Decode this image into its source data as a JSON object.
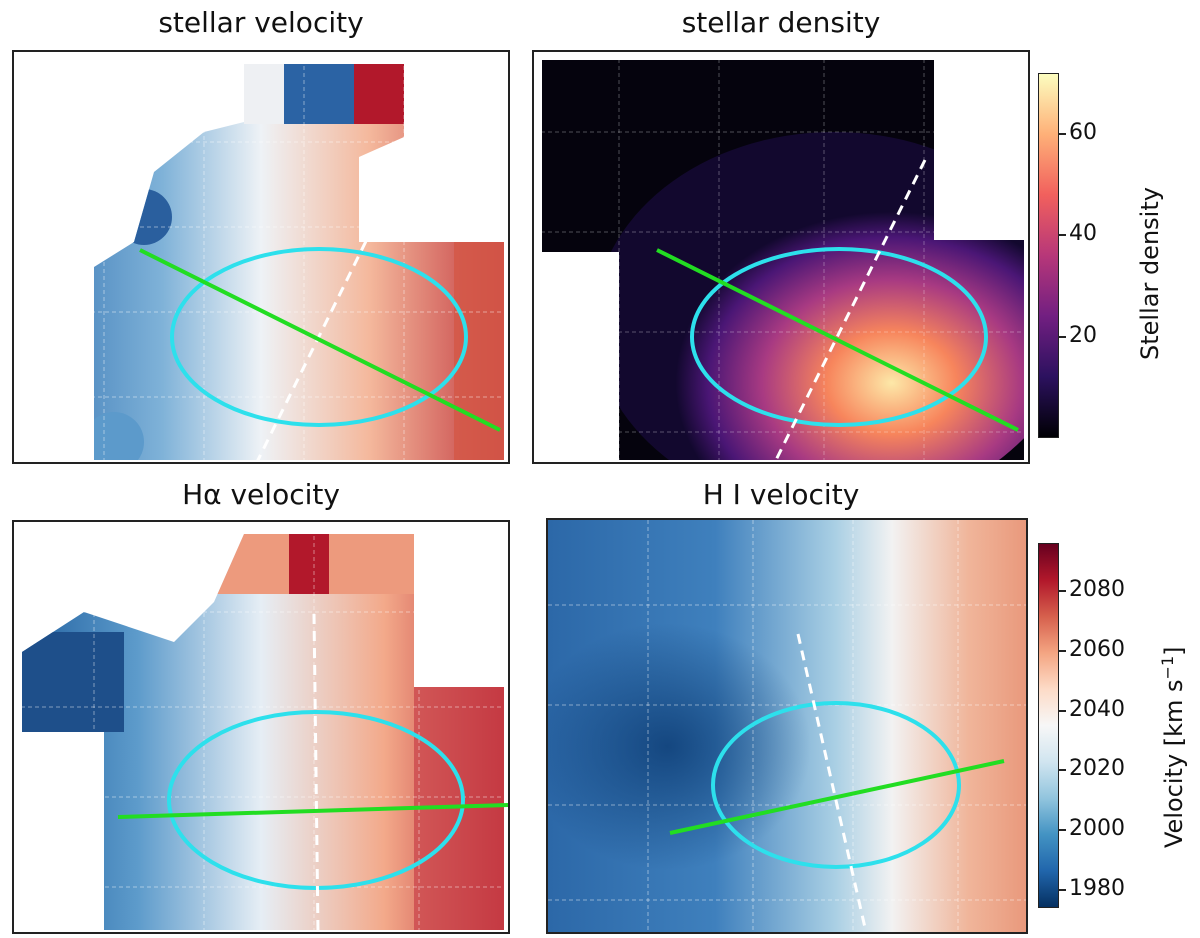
{
  "panels": [
    {
      "id": "stellar-velocity",
      "title": "stellar velocity",
      "colormap": "RdBu_r",
      "map_values": "stellar velocity field (diverging)"
    },
    {
      "id": "stellar-density",
      "title": "stellar density",
      "colormap": "magma",
      "map_values": "stellar density field"
    },
    {
      "id": "halpha-velocity",
      "title": "Hα velocity",
      "colormap": "RdBu_r",
      "map_values": "Hα velocity field (diverging)"
    },
    {
      "id": "hi-velocity",
      "title": "H I velocity",
      "colormap": "RdBu_r",
      "map_values": "H I velocity field (diverging)"
    }
  ],
  "overlays": {
    "ellipse_color": "#2de0ec",
    "kinematic_axis_color": "#22dd22",
    "photometric_axis_color": "#ffffff",
    "photometric_axis_style": "dashed"
  },
  "colorbars": {
    "density": {
      "label": "Stellar density",
      "ticks": [
        "20",
        "40",
        "60"
      ],
      "range": [
        0,
        72
      ],
      "colors": [
        "#000004",
        "#2c115f",
        "#721f81",
        "#b73779",
        "#f1605d",
        "#feb078",
        "#fcfdbf"
      ]
    },
    "velocity": {
      "label": "Velocity [km s",
      "label_sup": "−1",
      "label_end": "]",
      "ticks": [
        "1980",
        "2000",
        "2020",
        "2040",
        "2060",
        "2080"
      ],
      "range": [
        1974,
        2096
      ],
      "colors": [
        "#053061",
        "#2166ac",
        "#4393c3",
        "#92c5de",
        "#d1e5f0",
        "#f7f7f7",
        "#fddbc7",
        "#f4a582",
        "#d6604d",
        "#b2182b",
        "#67001f"
      ]
    }
  },
  "chart_data": [
    {
      "type": "heatmap",
      "title": "stellar velocity",
      "colormap": "RdBu_r",
      "colorbar": "velocity",
      "grid": true
    },
    {
      "type": "heatmap",
      "title": "stellar density",
      "colormap": "magma",
      "colorbar": "density",
      "zlim": [
        0,
        72
      ],
      "grid": true
    },
    {
      "type": "heatmap",
      "title": "Hα velocity",
      "colormap": "RdBu_r",
      "colorbar": "velocity",
      "grid": true
    },
    {
      "type": "heatmap",
      "title": "H I velocity",
      "colormap": "RdBu_r",
      "colorbar": "velocity",
      "zlim": [
        1974,
        2096
      ],
      "grid": true
    }
  ]
}
